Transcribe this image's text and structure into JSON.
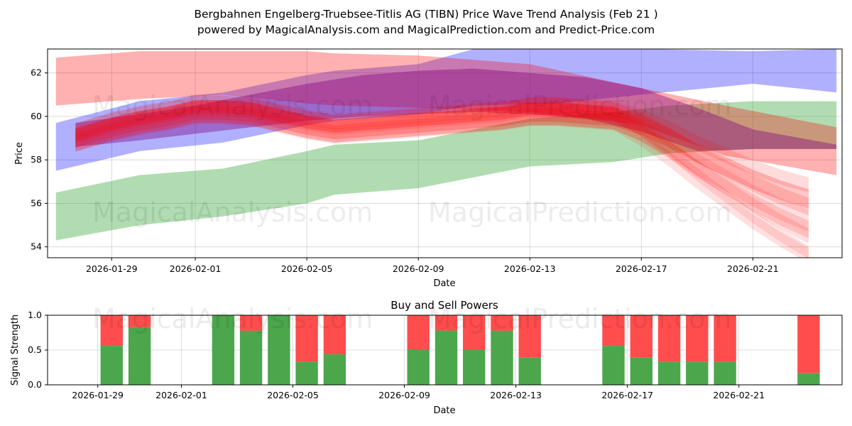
{
  "chart_data": [
    {
      "type": "area",
      "title_line1": "Bergbahnen Engelberg-Truebsee-Titlis AG (TIBN) Price Wave Trend Analysis (Feb 21 )",
      "title_line2": "powered by MagicalAnalysis.com and MagicalPrediction.com and Predict-Price.com",
      "xlabel": "Date",
      "ylabel": "Price",
      "xlim": [
        -2.3,
        26.2
      ],
      "ylim": [
        53.5,
        63.1
      ],
      "yticks": [
        54,
        56,
        58,
        60,
        62
      ],
      "xticks": [
        {
          "label": "2026-01-29",
          "day": 0
        },
        {
          "label": "2026-02-01",
          "day": 3
        },
        {
          "label": "2026-02-05",
          "day": 7
        },
        {
          "label": "2026-02-09",
          "day": 11
        },
        {
          "label": "2026-02-13",
          "day": 15
        },
        {
          "label": "2026-02-17",
          "day": 19
        },
        {
          "label": "2026-02-21",
          "day": 23
        }
      ],
      "watermarks": [
        "MagicalAnalysis.com",
        "MagicalPrediction.com",
        "MagicalAnalysis.com",
        "MagicalPrediction.com"
      ],
      "bands": [
        {
          "name": "green band",
          "color": "#2ca02c",
          "opacity": 0.37,
          "x": [
            -2,
            1,
            4,
            7,
            8,
            11,
            15,
            18,
            20,
            23,
            26
          ],
          "upper": [
            56.5,
            57.3,
            57.6,
            58.4,
            58.7,
            58.9,
            59.9,
            60.2,
            60.5,
            60.7,
            60.7
          ],
          "lower": [
            54.3,
            55.0,
            55.4,
            56.0,
            56.4,
            56.7,
            57.7,
            57.9,
            58.3,
            58.5,
            58.5
          ]
        },
        {
          "name": "blue band",
          "color": "#0000ff",
          "opacity": 0.31,
          "x": [
            -2,
            1,
            4,
            7,
            8,
            11,
            13,
            16,
            19,
            23,
            26
          ],
          "upper": [
            59.7,
            60.7,
            61.1,
            61.9,
            62.1,
            62.4,
            63.1,
            63.1,
            63.1,
            63.0,
            63.1
          ],
          "lower": [
            57.5,
            58.4,
            58.8,
            59.6,
            59.8,
            60.1,
            60.5,
            60.6,
            61.0,
            61.5,
            61.1
          ]
        },
        {
          "name": "red band",
          "color": "#ff0000",
          "opacity": 0.31,
          "x": [
            -2,
            1,
            4,
            7,
            8,
            11,
            15,
            19,
            22,
            26
          ],
          "upper": [
            62.7,
            63.0,
            63.0,
            63.0,
            62.9,
            62.8,
            62.4,
            61.3,
            60.5,
            59.5
          ],
          "lower": [
            60.5,
            60.8,
            61.0,
            60.6,
            60.5,
            60.4,
            60.2,
            59.6,
            58.2,
            57.3
          ]
        },
        {
          "name": "purple band",
          "color": "#800080",
          "opacity": 0.4,
          "x": [
            -1.3,
            1,
            3,
            5,
            7,
            9,
            11,
            13,
            15,
            17,
            19,
            21,
            23,
            26
          ],
          "upper": [
            59.7,
            60.1,
            60.5,
            61.0,
            61.5,
            61.9,
            62.1,
            62.2,
            62.0,
            61.8,
            61.3,
            60.4,
            59.4,
            58.7
          ],
          "lower": [
            58.6,
            58.9,
            59.2,
            59.5,
            59.8,
            60.0,
            60.1,
            60.2,
            60.1,
            59.9,
            59.3,
            58.4,
            58.5,
            58.5
          ]
        }
      ],
      "wave_x": [
        -1.3,
        0,
        1,
        2,
        3,
        4,
        5,
        6,
        7,
        8,
        9,
        10,
        11,
        12,
        13,
        14,
        15,
        16,
        17,
        18,
        19,
        20,
        21,
        22,
        23,
        24,
        25
      ],
      "wave_base": [
        59.0,
        59.5,
        59.8,
        60.0,
        60.3,
        60.3,
        60.2,
        59.9,
        59.6,
        59.4,
        59.5,
        59.6,
        59.7,
        59.8,
        59.9,
        60.0,
        60.2,
        60.2,
        60.1,
        60.0,
        59.6,
        59.0,
        58.3,
        57.7,
        57.1,
        56.6,
        56.2
      ],
      "wave_variants": [
        {
          "offset": 0.0,
          "tail": 0.0,
          "width": 0.45,
          "opacity": 0.22
        },
        {
          "offset": 0.25,
          "tail": -0.6,
          "width": 0.4,
          "opacity": 0.15
        },
        {
          "offset": -0.2,
          "tail": -1.2,
          "width": 0.4,
          "opacity": 0.14
        },
        {
          "offset": 0.1,
          "tail": -1.8,
          "width": 0.35,
          "opacity": 0.13
        },
        {
          "offset": -0.3,
          "tail": -2.3,
          "width": 0.35,
          "opacity": 0.12
        },
        {
          "offset": 0.35,
          "tail": 0.3,
          "width": 0.35,
          "opacity": 0.14
        },
        {
          "offset": -0.1,
          "tail": -0.9,
          "width": 0.5,
          "opacity": 0.12
        },
        {
          "offset": 0.15,
          "tail": -2.6,
          "width": 0.3,
          "opacity": 0.11
        }
      ]
    },
    {
      "type": "bar",
      "title": "Buy and Sell Powers",
      "xlabel": "Date",
      "ylabel": "Signal Strength",
      "ylim": [
        0,
        1
      ],
      "yticks": [
        "0.0",
        "0.5",
        "1.0"
      ],
      "xlim": [
        -2.3,
        26.2
      ],
      "xticks": [
        {
          "label": "2026-01-29",
          "day": 0
        },
        {
          "label": "2026-02-01",
          "day": 3
        },
        {
          "label": "2026-02-05",
          "day": 7
        },
        {
          "label": "2026-02-09",
          "day": 11
        },
        {
          "label": "2026-02-13",
          "day": 15
        },
        {
          "label": "2026-02-17",
          "day": 19
        },
        {
          "label": "2026-02-21",
          "day": 23
        }
      ],
      "series": [
        {
          "name": "Buy",
          "color": "#4ca64c"
        },
        {
          "name": "Sell",
          "color": "#ff4c4c"
        }
      ],
      "bars": [
        {
          "day": 0,
          "buy": 0.56
        },
        {
          "day": 1,
          "buy": 0.83
        },
        {
          "day": 4,
          "buy": 1.0
        },
        {
          "day": 5,
          "buy": 0.78
        },
        {
          "day": 6,
          "buy": 1.0
        },
        {
          "day": 7,
          "buy": 0.33
        },
        {
          "day": 8,
          "buy": 0.44
        },
        {
          "day": 11,
          "buy": 0.5
        },
        {
          "day": 12,
          "buy": 0.78
        },
        {
          "day": 13,
          "buy": 0.5
        },
        {
          "day": 14,
          "buy": 0.78
        },
        {
          "day": 15,
          "buy": 0.39
        },
        {
          "day": 18,
          "buy": 0.56
        },
        {
          "day": 19,
          "buy": 0.39
        },
        {
          "day": 20,
          "buy": 0.33
        },
        {
          "day": 21,
          "buy": 0.33
        },
        {
          "day": 22,
          "buy": 0.33
        },
        {
          "day": 25,
          "buy": 0.17
        }
      ]
    }
  ]
}
